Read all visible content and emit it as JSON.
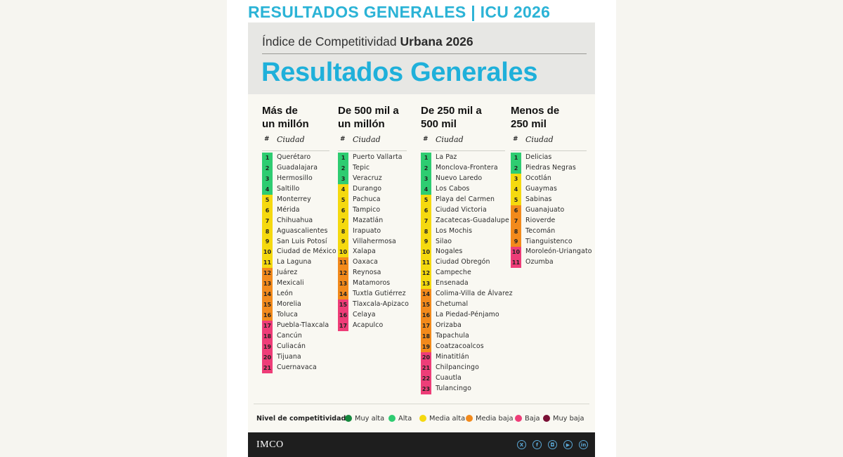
{
  "page_title": "RESULTADOS GENERALES | ICU 2026",
  "hero": {
    "subtitle_regular": "Índice de Competitividad ",
    "subtitle_bold": "Urbana 2026",
    "title": "Resultados Generales"
  },
  "table_headers": {
    "hash": "#",
    "city": "Ciudad"
  },
  "columns": [
    {
      "title_line1": "Más de",
      "title_line2": "un millón",
      "rows": [
        {
          "rank": "1",
          "city": "Querétaro",
          "level": "alta"
        },
        {
          "rank": "2",
          "city": "Guadalajara",
          "level": "alta"
        },
        {
          "rank": "3",
          "city": "Hermosillo",
          "level": "alta"
        },
        {
          "rank": "4",
          "city": "Saltillo",
          "level": "alta"
        },
        {
          "rank": "5",
          "city": "Monterrey",
          "level": "media_alta"
        },
        {
          "rank": "6",
          "city": "Mérida",
          "level": "media_alta"
        },
        {
          "rank": "7",
          "city": "Chihuahua",
          "level": "media_alta"
        },
        {
          "rank": "8",
          "city": "Aguascalientes",
          "level": "media_alta"
        },
        {
          "rank": "9",
          "city": "San Luis Potosí",
          "level": "media_alta"
        },
        {
          "rank": "10",
          "city": "Ciudad de México",
          "level": "media_alta"
        },
        {
          "rank": "11",
          "city": "La Laguna",
          "level": "media_alta"
        },
        {
          "rank": "12",
          "city": "Juárez",
          "level": "media_baja"
        },
        {
          "rank": "13",
          "city": "Mexicali",
          "level": "media_baja"
        },
        {
          "rank": "14",
          "city": "León",
          "level": "media_baja"
        },
        {
          "rank": "15",
          "city": "Morelia",
          "level": "media_baja"
        },
        {
          "rank": "16",
          "city": "Toluca",
          "level": "media_baja"
        },
        {
          "rank": "17",
          "city": "Puebla-Tlaxcala",
          "level": "baja"
        },
        {
          "rank": "18",
          "city": "Cancún",
          "level": "baja"
        },
        {
          "rank": "19",
          "city": "Culiacán",
          "level": "baja"
        },
        {
          "rank": "20",
          "city": "Tijuana",
          "level": "baja"
        },
        {
          "rank": "21",
          "city": "Cuernavaca",
          "level": "baja"
        }
      ]
    },
    {
      "title_line1": "De 500 mil a",
      "title_line2": "un millón",
      "rows": [
        {
          "rank": "1",
          "city": "Puerto Vallarta",
          "level": "alta"
        },
        {
          "rank": "2",
          "city": "Tepic",
          "level": "alta"
        },
        {
          "rank": "3",
          "city": "Veracruz",
          "level": "alta"
        },
        {
          "rank": "4",
          "city": "Durango",
          "level": "media_alta"
        },
        {
          "rank": "5",
          "city": "Pachuca",
          "level": "media_alta"
        },
        {
          "rank": "6",
          "city": "Tampico",
          "level": "media_alta"
        },
        {
          "rank": "7",
          "city": "Mazatlán",
          "level": "media_alta"
        },
        {
          "rank": "8",
          "city": "Irapuato",
          "level": "media_alta"
        },
        {
          "rank": "9",
          "city": "Villahermosa",
          "level": "media_alta"
        },
        {
          "rank": "10",
          "city": "Xalapa",
          "level": "media_alta"
        },
        {
          "rank": "11",
          "city": "Oaxaca",
          "level": "media_baja"
        },
        {
          "rank": "12",
          "city": "Reynosa",
          "level": "media_baja"
        },
        {
          "rank": "13",
          "city": "Matamoros",
          "level": "media_baja"
        },
        {
          "rank": "14",
          "city": "Tuxtla Gutiérrez",
          "level": "media_baja"
        },
        {
          "rank": "15",
          "city": "Tlaxcala-Apizaco",
          "level": "baja"
        },
        {
          "rank": "16",
          "city": "Celaya",
          "level": "baja"
        },
        {
          "rank": "17",
          "city": "Acapulco",
          "level": "baja"
        }
      ]
    },
    {
      "title_line1": "De 250 mil a",
      "title_line2": "500 mil",
      "rows": [
        {
          "rank": "1",
          "city": "La Paz",
          "level": "alta"
        },
        {
          "rank": "2",
          "city": "Monclova-Frontera",
          "level": "alta"
        },
        {
          "rank": "3",
          "city": "Nuevo Laredo",
          "level": "alta"
        },
        {
          "rank": "4",
          "city": "Los Cabos",
          "level": "alta"
        },
        {
          "rank": "5",
          "city": "Playa del Carmen",
          "level": "media_alta"
        },
        {
          "rank": "6",
          "city": "Ciudad Victoria",
          "level": "media_alta"
        },
        {
          "rank": "7",
          "city": "Zacatecas-Guadalupe",
          "level": "media_alta"
        },
        {
          "rank": "8",
          "city": "Los Mochis",
          "level": "media_alta"
        },
        {
          "rank": "9",
          "city": "Silao",
          "level": "media_alta"
        },
        {
          "rank": "10",
          "city": "Nogales",
          "level": "media_alta"
        },
        {
          "rank": "11",
          "city": "Ciudad Obregón",
          "level": "media_alta"
        },
        {
          "rank": "12",
          "city": "Campeche",
          "level": "media_alta"
        },
        {
          "rank": "13",
          "city": "Ensenada",
          "level": "media_alta"
        },
        {
          "rank": "14",
          "city": "Colima-Villa de Álvarez",
          "level": "media_baja"
        },
        {
          "rank": "15",
          "city": "Chetumal",
          "level": "media_baja"
        },
        {
          "rank": "16",
          "city": "La Piedad-Pénjamo",
          "level": "media_baja"
        },
        {
          "rank": "17",
          "city": "Orizaba",
          "level": "media_baja"
        },
        {
          "rank": "18",
          "city": "Tapachula",
          "level": "media_baja"
        },
        {
          "rank": "19",
          "city": "Coatzacoalcos",
          "level": "media_baja"
        },
        {
          "rank": "20",
          "city": "Minatitlán",
          "level": "baja"
        },
        {
          "rank": "21",
          "city": "Chilpancingo",
          "level": "baja"
        },
        {
          "rank": "22",
          "city": "Cuautla",
          "level": "baja"
        },
        {
          "rank": "23",
          "city": "Tulancingo",
          "level": "baja"
        }
      ]
    },
    {
      "title_line1": "Menos de",
      "title_line2": "250 mil",
      "rows": [
        {
          "rank": "1",
          "city": "Delicias",
          "level": "alta"
        },
        {
          "rank": "2",
          "city": "Piedras Negras",
          "level": "alta"
        },
        {
          "rank": "3",
          "city": "Ocotlán",
          "level": "media_alta"
        },
        {
          "rank": "4",
          "city": "Guaymas",
          "level": "media_alta"
        },
        {
          "rank": "5",
          "city": "Sabinas",
          "level": "media_alta"
        },
        {
          "rank": "6",
          "city": "Guanajuato",
          "level": "media_baja"
        },
        {
          "rank": "7",
          "city": "Rioverde",
          "level": "media_baja"
        },
        {
          "rank": "8",
          "city": "Tecomán",
          "level": "media_baja"
        },
        {
          "rank": "9",
          "city": "Tianguistenco",
          "level": "media_baja"
        },
        {
          "rank": "10",
          "city": "Moroleón-Uriangato",
          "level": "baja"
        },
        {
          "rank": "11",
          "city": "Ozumba",
          "level": "baja"
        }
      ]
    }
  ],
  "level_colors": {
    "muy_alta": "#16883e",
    "alta": "#2ecc71",
    "media_alta": "#f5d90f",
    "media_baja": "#f28a1c",
    "baja": "#ee3d78",
    "muy_baja": "#7a1035"
  },
  "legend": {
    "label": "Nivel de competitividad",
    "items": [
      {
        "key": "muy_alta",
        "label": "Muy alta"
      },
      {
        "key": "alta",
        "label": "Alta"
      },
      {
        "key": "media_alta",
        "label": "Media alta"
      },
      {
        "key": "media_baja",
        "label": "Media baja"
      },
      {
        "key": "baja",
        "label": "Baja"
      },
      {
        "key": "muy_baja",
        "label": "Muy baja"
      }
    ]
  },
  "footer": {
    "logo": "IMCO",
    "social_icons": [
      "x-icon",
      "facebook-icon",
      "instagram-icon",
      "youtube-icon",
      "linkedin-icon"
    ]
  }
}
